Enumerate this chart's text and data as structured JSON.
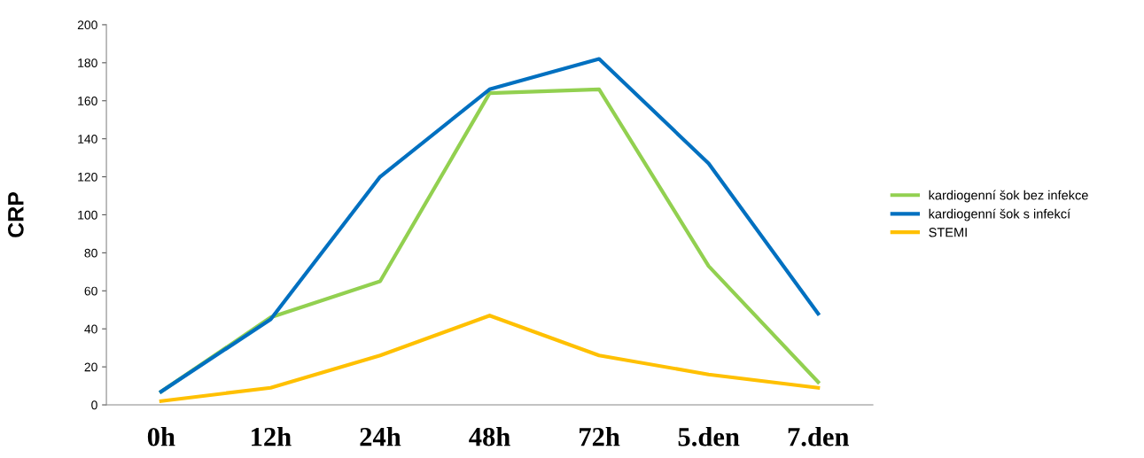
{
  "chart_data": {
    "type": "line",
    "ylabel": "CRP",
    "categories": [
      "0h",
      "12h",
      "24h",
      "48h",
      "72h",
      "5.den",
      "7.den"
    ],
    "series": [
      {
        "name": "kardiogenní šok bez infekce",
        "color": "#92d050",
        "values": [
          7,
          46,
          65,
          164,
          166,
          73,
          12
        ]
      },
      {
        "name": "kardiogenní šok s infekcí",
        "color": "#0070c0",
        "values": [
          7,
          45,
          120,
          166,
          182,
          127,
          48
        ]
      },
      {
        "name": "STEMI",
        "color": "#ffc000",
        "values": [
          2,
          9,
          26,
          47,
          26,
          16,
          9
        ]
      }
    ],
    "ylim": [
      0,
      200
    ],
    "yticks": [
      0,
      20,
      40,
      60,
      80,
      100,
      120,
      140,
      160,
      180,
      200
    ],
    "grid": false,
    "legend": "right",
    "marker": "none",
    "line_style": "solid"
  }
}
